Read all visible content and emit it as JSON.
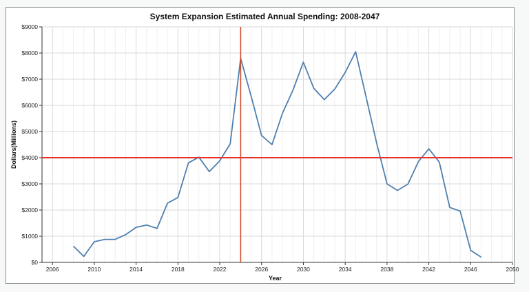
{
  "chart_data": {
    "type": "line",
    "title": "System Expansion Estimated Annual Spending: 2008-2047",
    "xlabel": "Year",
    "ylabel": "Dollars(Millions)",
    "xlim": [
      2005,
      2050
    ],
    "ylim": [
      0,
      9000
    ],
    "x_ticks": [
      2006,
      2010,
      2014,
      2018,
      2022,
      2026,
      2030,
      2034,
      2038,
      2042,
      2046,
      2050
    ],
    "y_ticks": [
      0,
      1000,
      2000,
      3000,
      4000,
      5000,
      6000,
      7000,
      8000,
      9000
    ],
    "y_tick_labels": [
      "$0",
      "$1000",
      "$2000",
      "$3000",
      "$4000",
      "$5000",
      "$6000",
      "$7000",
      "$8000",
      "$9000"
    ],
    "grid": true,
    "series": [
      {
        "color": "#4f7fad",
        "points": [
          [
            2008,
            620
          ],
          [
            2009,
            230
          ],
          [
            2010,
            790
          ],
          [
            2011,
            880
          ],
          [
            2012,
            880
          ],
          [
            2013,
            1060
          ],
          [
            2014,
            1340
          ],
          [
            2015,
            1430
          ],
          [
            2016,
            1300
          ],
          [
            2017,
            2260
          ],
          [
            2018,
            2480
          ],
          [
            2019,
            3800
          ],
          [
            2020,
            4020
          ],
          [
            2021,
            3470
          ],
          [
            2022,
            3880
          ],
          [
            2023,
            4530
          ],
          [
            2024,
            7800
          ],
          [
            2025,
            6350
          ],
          [
            2026,
            4850
          ],
          [
            2027,
            4500
          ],
          [
            2028,
            5700
          ],
          [
            2029,
            6580
          ],
          [
            2030,
            7650
          ],
          [
            2031,
            6650
          ],
          [
            2032,
            6220
          ],
          [
            2033,
            6620
          ],
          [
            2034,
            7260
          ],
          [
            2035,
            8050
          ],
          [
            2036,
            6320
          ],
          [
            2037,
            4570
          ],
          [
            2038,
            3000
          ],
          [
            2039,
            2750
          ],
          [
            2040,
            2990
          ],
          [
            2041,
            3850
          ],
          [
            2042,
            4340
          ],
          [
            2043,
            3830
          ],
          [
            2044,
            2100
          ],
          [
            2045,
            1960
          ],
          [
            2046,
            460
          ],
          [
            2047,
            200
          ]
        ]
      }
    ],
    "reference_lines": {
      "horizontal_y": 4000,
      "vertical_x": 2024,
      "horizontal_color": "#e8312a",
      "vertical_color": "#d24a2a"
    }
  }
}
